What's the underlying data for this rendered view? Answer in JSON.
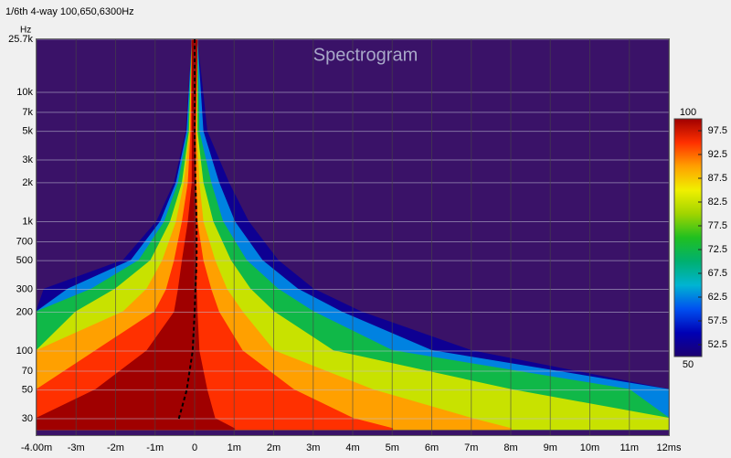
{
  "chart_data": {
    "type": "spectrogram",
    "window_title": "1/6th 4-way 100,650,6300Hz",
    "title": "Spectrogram",
    "y_unit": "Hz",
    "log_y": true,
    "grid": true,
    "background": "#3a1268",
    "xlim": [
      -4,
      12
    ],
    "xticks": [
      {
        "value": -4,
        "label": "-4.00m"
      },
      {
        "value": -3,
        "label": "-3m"
      },
      {
        "value": -2,
        "label": "-2m"
      },
      {
        "value": -1,
        "label": "-1m"
      },
      0,
      {
        "value": 1,
        "label": "1m"
      },
      {
        "value": 2,
        "label": "2m"
      },
      {
        "value": 3,
        "label": "3m"
      },
      {
        "value": 4,
        "label": "4m"
      },
      {
        "value": 5,
        "label": "5m"
      },
      {
        "value": 6,
        "label": "6m"
      },
      {
        "value": 7,
        "label": "7m"
      },
      {
        "value": 8,
        "label": "8m"
      },
      {
        "value": 9,
        "label": "9m"
      },
      {
        "value": 10,
        "label": "10m"
      },
      {
        "value": 11,
        "label": "11m"
      },
      {
        "value": 12,
        "label": "12ms"
      }
    ],
    "ylim": [
      22.4,
      25700
    ],
    "yticks": [
      30,
      50,
      70,
      100,
      200,
      300,
      500,
      700,
      {
        "value": 1000,
        "label": "1k"
      },
      {
        "value": 2000,
        "label": "2k"
      },
      {
        "value": 3000,
        "label": "3k"
      },
      {
        "value": 5000,
        "label": "5k"
      },
      {
        "value": 7000,
        "label": "7k"
      },
      {
        "value": 10000,
        "label": "10k"
      },
      {
        "value": 25700,
        "label": "25.7k"
      }
    ],
    "colorbar": {
      "lim": [
        50,
        100
      ],
      "ticks": [
        52.5,
        57.5,
        62.5,
        67.5,
        72.5,
        77.5,
        82.5,
        87.5,
        92.5,
        97.5
      ],
      "colormap": [
        "#1c0070",
        "#0000b4",
        "#0050f0",
        "#00b4d2",
        "#00b070",
        "#20c020",
        "#a0d400",
        "#f0f000",
        "#ffa000",
        "#ff3000",
        "#a00000"
      ]
    },
    "frequencies": [
      25,
      30,
      50,
      100,
      200,
      300,
      500,
      1000,
      2000,
      5000,
      25700
    ],
    "contours": [
      {
        "level": 52.5,
        "start": [
          -4,
          -4,
          -4,
          -4,
          -4,
          -3.8,
          -1.8,
          -0.95,
          -0.5,
          -0.2,
          -0.05
        ],
        "end": [
          12,
          12,
          12,
          7,
          4.2,
          3,
          2.1,
          1.35,
          0.85,
          0.3,
          0.05
        ]
      },
      {
        "level": 62.5,
        "start": [
          -4,
          -4,
          -4,
          -4,
          -4,
          -3.2,
          -1.6,
          -0.85,
          -0.45,
          -0.18,
          -0.05
        ],
        "end": [
          12,
          12,
          12,
          6,
          3.7,
          2.6,
          1.7,
          1.0,
          0.6,
          0.2,
          0.05
        ]
      },
      {
        "level": 72.5,
        "start": [
          -4,
          -4,
          -4,
          -4,
          -4,
          -2.6,
          -1.4,
          -0.75,
          -0.4,
          -0.15,
          -0.05
        ],
        "end": [
          12,
          12,
          11,
          5,
          3,
          2.1,
          1.3,
          0.7,
          0.4,
          0.1,
          0.05
        ]
      },
      {
        "level": 82.5,
        "start": [
          -4,
          -4,
          -4,
          -4,
          -3,
          -2,
          -1.1,
          -0.6,
          -0.3,
          -0.12,
          -0.05
        ],
        "end": [
          12,
          12,
          8,
          3.5,
          2,
          1.4,
          0.9,
          0.45,
          0.2,
          0.05,
          0.05
        ]
      },
      {
        "level": 90,
        "start": [
          -4,
          -4,
          -4,
          -4,
          -1.8,
          -1.2,
          -0.8,
          -0.45,
          -0.25,
          -0.1,
          -0.05
        ],
        "end": [
          8,
          7,
          4.5,
          2,
          1.2,
          0.8,
          0.5,
          0.2,
          0.1,
          0.03,
          0.05
        ]
      },
      {
        "level": 95,
        "start": [
          -4,
          -4,
          -4,
          -2.5,
          -1,
          -0.7,
          -0.5,
          -0.3,
          -0.15,
          -0.08,
          -0.05
        ],
        "end": [
          5,
          4,
          2.5,
          1.2,
          0.6,
          0.4,
          0.2,
          0.05,
          0.02,
          0.01,
          0.05
        ]
      },
      {
        "level": 100,
        "start": [
          -4,
          -4,
          -2.5,
          -1.2,
          -0.5,
          -0.4,
          -0.3,
          -0.15,
          -0.05,
          -0.05,
          -0.05
        ],
        "end": [
          1,
          0.5,
          0.3,
          0.1,
          0.05,
          0.03,
          0.02,
          0.01,
          0,
          0,
          0.05
        ]
      }
    ],
    "peak_times": [
      null,
      -0.4,
      -0.2,
      -0.05,
      0,
      0.02,
      0.05,
      0.05,
      0.02,
      0,
      0
    ]
  }
}
